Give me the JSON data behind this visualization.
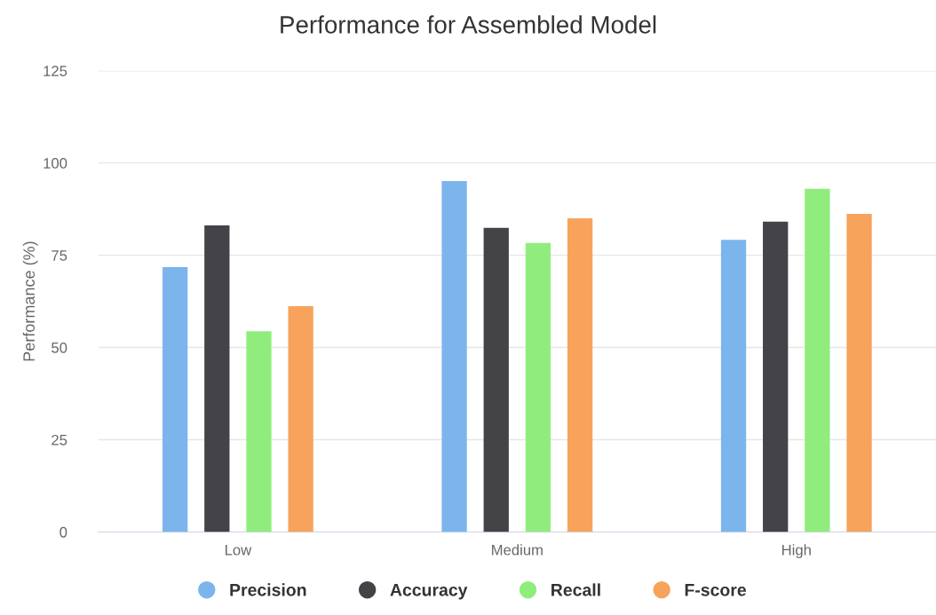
{
  "chart_data": {
    "type": "bar",
    "title": "Performance for Assembled Model",
    "ylabel": "Performance (%)",
    "categories": [
      "Low",
      "Medium",
      "High"
    ],
    "series": [
      {
        "name": "Precision",
        "color": "#7cb5ec",
        "values": [
          71.8,
          95.1,
          79.2
        ]
      },
      {
        "name": "Accuracy",
        "color": "#434348",
        "values": [
          83.1,
          82.4,
          84.1
        ]
      },
      {
        "name": "Recall",
        "color": "#90ed7d",
        "values": [
          54.4,
          78.3,
          93.0
        ]
      },
      {
        "name": "F-score",
        "color": "#f7a35c",
        "values": [
          61.2,
          85.0,
          86.2
        ]
      }
    ],
    "ylim": [
      0,
      125
    ],
    "yticks": [
      0,
      25,
      50,
      75,
      100,
      125
    ],
    "grid": "y",
    "legend": "bottom"
  }
}
